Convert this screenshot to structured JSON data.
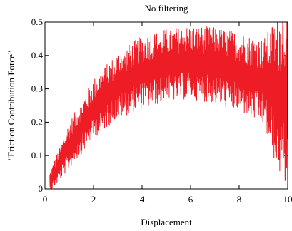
{
  "chart_data": {
    "type": "line",
    "title": "No filtering",
    "xlabel": "Displacement",
    "ylabel": "\"Friction Contribution Force\"",
    "xlim": [
      0,
      10
    ],
    "ylim": [
      0,
      0.5
    ],
    "x_ticks": [
      "0",
      "2",
      "4",
      "6",
      "8",
      "10"
    ],
    "y_ticks": [
      "0",
      "0.1",
      "0.2",
      "0.3",
      "0.4",
      "0.5"
    ],
    "grid": false,
    "line_color": "#ee1c25",
    "trend": {
      "x": [
        0.2,
        1.0,
        2.0,
        3.0,
        4.0,
        5.0,
        6.0,
        7.0,
        8.0,
        9.0,
        9.5,
        10.0
      ],
      "y": [
        0.02,
        0.13,
        0.24,
        0.31,
        0.35,
        0.37,
        0.38,
        0.37,
        0.35,
        0.32,
        0.29,
        0.28
      ]
    },
    "amplitude": {
      "x": [
        0.2,
        1.0,
        2.0,
        4.0,
        6.0,
        8.0,
        9.0,
        9.5,
        10.0
      ],
      "y": [
        0.03,
        0.07,
        0.09,
        0.11,
        0.11,
        0.12,
        0.13,
        0.22,
        0.3
      ]
    },
    "samples": 900
  }
}
